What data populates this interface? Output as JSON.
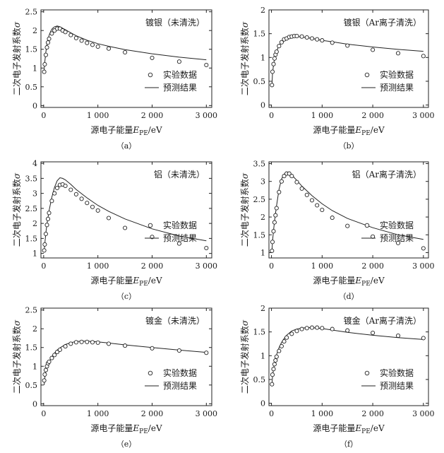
{
  "chart_data": [
    {
      "type": "scatter",
      "panel_title": "镀银（未清洗）",
      "caption": "（a）",
      "ylabel": "二次电子发射系数σ",
      "xlabel": "源电子能量E_PE/eV",
      "xlim": [
        -50,
        3100
      ],
      "ylim": [
        -0.05,
        2.55
      ],
      "xticks": [
        0,
        1000,
        2000,
        3000
      ],
      "xtick_labels": [
        "0",
        "1 000",
        "2 000",
        "3 000"
      ],
      "yticks": [
        0,
        0.5,
        1,
        1.5,
        2,
        2.5
      ],
      "ytick_labels": [
        "0",
        "0.5",
        "1",
        "1.5",
        "2",
        "2.5"
      ],
      "legend": {
        "position": "right",
        "experimental": "实验数据",
        "predicted": "预测结果"
      },
      "experimental": {
        "x": [
          10,
          20,
          40,
          60,
          80,
          100,
          150,
          200,
          250,
          300,
          350,
          400,
          500,
          600,
          700,
          800,
          900,
          1000,
          1200,
          1500,
          2000,
          2500,
          3000
        ],
        "y": [
          0.9,
          1.1,
          1.35,
          1.55,
          1.68,
          1.78,
          1.92,
          2.0,
          2.05,
          2.05,
          2.0,
          1.96,
          1.88,
          1.8,
          1.73,
          1.67,
          1.62,
          1.57,
          1.52,
          1.42,
          1.27,
          1.17,
          1.08
        ]
      },
      "predicted": {
        "x": [
          10,
          20,
          40,
          60,
          80,
          100,
          130,
          160,
          200,
          250,
          300,
          350,
          400,
          500,
          600,
          800,
          1000,
          1200,
          1500,
          2000,
          2500,
          3000
        ],
        "y": [
          0.95,
          1.15,
          1.42,
          1.62,
          1.76,
          1.87,
          1.98,
          2.05,
          2.1,
          2.12,
          2.1,
          2.06,
          2.02,
          1.94,
          1.86,
          1.74,
          1.65,
          1.58,
          1.49,
          1.38,
          1.29,
          1.22
        ]
      }
    },
    {
      "type": "scatter",
      "panel_title": "镀银（Ar离子清洗）",
      "caption": "（b）",
      "ylabel": "二次电子发射系数σ",
      "xlabel": "源电子能量E_PE/eV",
      "xlim": [
        -50,
        3100
      ],
      "ylim": [
        -0.05,
        2.0
      ],
      "xticks": [
        0,
        1000,
        2000,
        3000
      ],
      "xtick_labels": [
        "0",
        "1 000",
        "2 000",
        "3 000"
      ],
      "yticks": [
        0,
        0.5,
        1,
        1.5,
        2
      ],
      "ytick_labels": [
        "0",
        "0.5",
        "1",
        "1.5",
        "2"
      ],
      "legend": {
        "position": "right",
        "experimental": "实验数据",
        "predicted": "预测结果"
      },
      "experimental": {
        "x": [
          10,
          20,
          40,
          60,
          80,
          100,
          150,
          200,
          250,
          300,
          350,
          400,
          450,
          500,
          600,
          700,
          800,
          900,
          1000,
          1200,
          1500,
          2000,
          2500,
          3000
        ],
        "y": [
          0.42,
          0.7,
          0.86,
          0.98,
          1.06,
          1.12,
          1.24,
          1.32,
          1.38,
          1.4,
          1.43,
          1.44,
          1.45,
          1.45,
          1.44,
          1.42,
          1.4,
          1.38,
          1.36,
          1.31,
          1.25,
          1.16,
          1.09,
          1.03
        ]
      },
      "predicted": {
        "x": [
          10,
          20,
          40,
          60,
          80,
          100,
          150,
          200,
          250,
          300,
          400,
          500,
          600,
          800,
          1000,
          1200,
          1500,
          2000,
          2500,
          3000
        ],
        "y": [
          0.42,
          0.65,
          0.85,
          0.97,
          1.06,
          1.13,
          1.25,
          1.33,
          1.38,
          1.41,
          1.44,
          1.44,
          1.43,
          1.4,
          1.36,
          1.33,
          1.28,
          1.22,
          1.17,
          1.13
        ]
      }
    },
    {
      "type": "scatter",
      "panel_title": "铝（未清洗）",
      "caption": "（c）",
      "ylabel": "二次电子发射系数σ",
      "xlabel": "源电子能量E_PE/eV",
      "xlim": [
        -50,
        3100
      ],
      "ylim": [
        0.85,
        4.05
      ],
      "xticks": [
        0,
        1000,
        2000,
        3000
      ],
      "xtick_labels": [
        "0",
        "1 000",
        "2 000",
        "3 000"
      ],
      "yticks": [
        1,
        1.5,
        2,
        2.5,
        3,
        3.5,
        4
      ],
      "ytick_labels": [
        "1",
        "1.5",
        "2",
        "2.5",
        "3",
        "3.5",
        "4"
      ],
      "legend": {
        "position": "right",
        "experimental": "实验数据",
        "predicted": "预测结果"
      },
      "experimental": {
        "x": [
          10,
          20,
          40,
          60,
          80,
          100,
          150,
          200,
          250,
          300,
          350,
          400,
          500,
          600,
          700,
          800,
          900,
          1000,
          1200,
          1500,
          2000,
          2500,
          3000
        ],
        "y": [
          1.1,
          1.3,
          1.65,
          1.95,
          2.15,
          2.35,
          2.75,
          3.0,
          3.18,
          3.28,
          3.3,
          3.25,
          3.12,
          2.97,
          2.82,
          2.68,
          2.55,
          2.43,
          2.18,
          1.85,
          1.55,
          1.33,
          1.18
        ]
      },
      "predicted": {
        "x": [
          10,
          20,
          40,
          60,
          80,
          100,
          150,
          200,
          250,
          300,
          350,
          400,
          500,
          600,
          800,
          1000,
          1200,
          1500,
          2000,
          2500,
          3000
        ],
        "y": [
          1.1,
          1.3,
          1.68,
          1.97,
          2.2,
          2.42,
          2.87,
          3.2,
          3.42,
          3.52,
          3.5,
          3.45,
          3.3,
          3.13,
          2.85,
          2.6,
          2.4,
          2.15,
          1.82,
          1.58,
          1.42
        ]
      }
    },
    {
      "type": "scatter",
      "panel_title": "铝（Ar离子清洗）",
      "caption": "（d）",
      "ylabel": "二次电子发射系数σ",
      "xlabel": "源电子能量E_PE/eV",
      "xlim": [
        -50,
        3100
      ],
      "ylim": [
        0.85,
        3.55
      ],
      "xticks": [
        0,
        1000,
        2000,
        3000
      ],
      "xtick_labels": [
        "0",
        "1 000",
        "2 000",
        "3 000"
      ],
      "yticks": [
        1,
        1.5,
        2,
        2.5,
        3,
        3.5
      ],
      "ytick_labels": [
        "1",
        "1.5",
        "2",
        "2.5",
        "3",
        "3.5"
      ],
      "legend": {
        "position": "right",
        "experimental": "实验数据",
        "predicted": "预测结果"
      },
      "experimental": {
        "x": [
          10,
          20,
          40,
          60,
          80,
          100,
          150,
          200,
          250,
          300,
          350,
          400,
          500,
          600,
          700,
          800,
          900,
          1000,
          1200,
          1500,
          2000,
          2500,
          3000
        ],
        "y": [
          1.05,
          1.3,
          1.6,
          1.85,
          2.05,
          2.25,
          2.7,
          3.0,
          3.15,
          3.22,
          3.22,
          3.15,
          2.98,
          2.8,
          2.62,
          2.47,
          2.33,
          2.2,
          1.98,
          1.75,
          1.45,
          1.27,
          1.12
        ]
      },
      "predicted": {
        "x": [
          10,
          20,
          40,
          60,
          80,
          100,
          150,
          200,
          250,
          300,
          350,
          400,
          500,
          600,
          800,
          1000,
          1200,
          1500,
          2000,
          2500,
          3000
        ],
        "y": [
          1.05,
          1.3,
          1.62,
          1.88,
          2.1,
          2.32,
          2.78,
          3.07,
          3.2,
          3.25,
          3.23,
          3.18,
          3.03,
          2.87,
          2.6,
          2.37,
          2.18,
          1.96,
          1.7,
          1.5,
          1.37
        ]
      }
    },
    {
      "type": "scatter",
      "panel_title": "镀金（未清洗）",
      "caption": "（e）",
      "ylabel": "二次电子发射系数σ",
      "xlabel": "源电子能量E_PE/eV",
      "xlim": [
        -50,
        3100
      ],
      "ylim": [
        -0.05,
        2.55
      ],
      "xticks": [
        0,
        1000,
        2000,
        3000
      ],
      "xtick_labels": [
        "0",
        "1 000",
        "2 000",
        "3 000"
      ],
      "yticks": [
        0,
        0.5,
        1,
        1.5,
        2,
        2.5
      ],
      "ytick_labels": [
        "0",
        "0.5",
        "1",
        "1.5",
        "2",
        "2.5"
      ],
      "legend": {
        "position": "right",
        "experimental": "实验数据",
        "predicted": "预测结果"
      },
      "experimental": {
        "x": [
          10,
          20,
          40,
          60,
          80,
          100,
          150,
          200,
          250,
          300,
          400,
          500,
          600,
          700,
          800,
          900,
          1000,
          1200,
          1500,
          2000,
          2500,
          3000
        ],
        "y": [
          0.62,
          0.78,
          0.9,
          1.0,
          1.08,
          1.12,
          1.22,
          1.3,
          1.38,
          1.44,
          1.53,
          1.6,
          1.64,
          1.65,
          1.65,
          1.64,
          1.63,
          1.6,
          1.55,
          1.48,
          1.42,
          1.36
        ]
      },
      "predicted": {
        "x": [
          10,
          20,
          40,
          60,
          80,
          100,
          150,
          200,
          250,
          300,
          400,
          500,
          600,
          700,
          800,
          1000,
          1200,
          1500,
          2000,
          2500,
          3000
        ],
        "y": [
          0.5,
          0.68,
          0.85,
          0.96,
          1.05,
          1.12,
          1.25,
          1.35,
          1.43,
          1.49,
          1.58,
          1.63,
          1.66,
          1.67,
          1.67,
          1.65,
          1.62,
          1.57,
          1.5,
          1.43,
          1.37
        ]
      }
    },
    {
      "type": "scatter",
      "panel_title": "镀金（Ar离子清洗）",
      "caption": "（f）",
      "ylabel": "二次电子发射系数σ",
      "xlabel": "源电子能量E_PE/eV",
      "xlim": [
        -50,
        3100
      ],
      "ylim": [
        -0.05,
        2.0
      ],
      "xticks": [
        0,
        1000,
        2000,
        3000
      ],
      "xtick_labels": [
        "0",
        "1 000",
        "2 000",
        "3 000"
      ],
      "yticks": [
        0,
        0.5,
        1,
        1.5,
        2
      ],
      "ytick_labels": [
        "0",
        "0.5",
        "1",
        "1.5",
        "2"
      ],
      "legend": {
        "position": "right",
        "experimental": "实验数据",
        "predicted": "预测结果"
      },
      "experimental": {
        "x": [
          10,
          20,
          40,
          60,
          80,
          100,
          150,
          200,
          250,
          300,
          400,
          500,
          600,
          700,
          800,
          900,
          1000,
          1200,
          1500,
          2000,
          2500,
          3000
        ],
        "y": [
          0.4,
          0.6,
          0.72,
          0.82,
          0.9,
          0.98,
          1.1,
          1.2,
          1.3,
          1.38,
          1.46,
          1.52,
          1.56,
          1.58,
          1.59,
          1.59,
          1.58,
          1.56,
          1.53,
          1.48,
          1.42,
          1.37
        ]
      },
      "predicted": {
        "x": [
          10,
          20,
          40,
          60,
          80,
          100,
          150,
          200,
          250,
          300,
          400,
          500,
          600,
          700,
          800,
          1000,
          1200,
          1500,
          2000,
          2500,
          3000
        ],
        "y": [
          0.38,
          0.55,
          0.72,
          0.84,
          0.94,
          1.02,
          1.17,
          1.28,
          1.36,
          1.43,
          1.52,
          1.56,
          1.58,
          1.59,
          1.59,
          1.57,
          1.54,
          1.49,
          1.43,
          1.38,
          1.34
        ]
      }
    }
  ]
}
